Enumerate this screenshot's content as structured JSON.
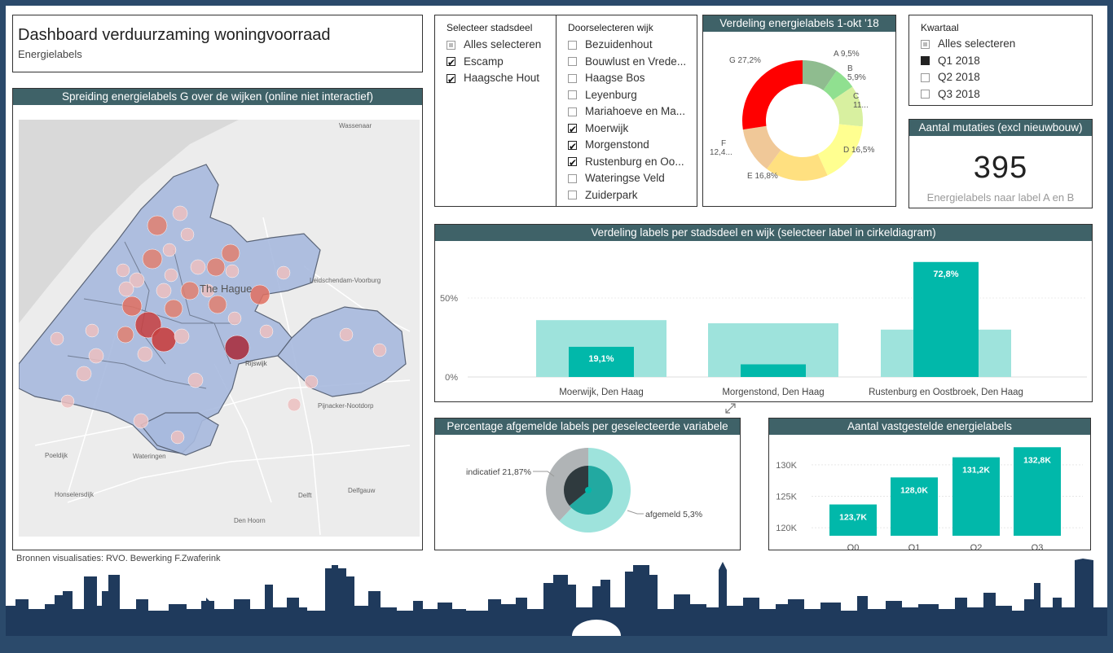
{
  "header": {
    "title": "Dashboard verduurzaming woningvoorraad",
    "subtitle": "Energielabels"
  },
  "map": {
    "title": "Spreiding energielabels G over de wijken (online niet interactief)",
    "places": {
      "wassenaar": "Wassenaar",
      "the_hague": "The Hague",
      "leidschendam": "Leidschendam-Voorburg",
      "rijswijk": "Rijswijk",
      "pijnacker": "Pijnacker-Nootdorp",
      "poeldijk": "Poeldijk",
      "wateringen": "Wateringen",
      "honselersdijk": "Honselersdijk",
      "delft": "Delft",
      "delfgauw": "Delfgauw",
      "den_hoorn": "Den Hoorn"
    }
  },
  "source_note": "Bronnen visualisaties: RVO. Bewerking F.Zwaferink",
  "slicer_stadsdeel": {
    "title": "Selecteer stadsdeel",
    "items": [
      {
        "label": "Alles selecteren",
        "state": "partial"
      },
      {
        "label": "Escamp",
        "state": "checked"
      },
      {
        "label": "Haagsche Hout",
        "state": "checked"
      }
    ]
  },
  "slicer_wijk": {
    "title": "Doorselecteren wijk",
    "items": [
      {
        "label": "Bezuidenhout",
        "state": "unchecked"
      },
      {
        "label": "Bouwlust en Vrede...",
        "state": "unchecked"
      },
      {
        "label": "Haagse Bos",
        "state": "unchecked"
      },
      {
        "label": "Leyenburg",
        "state": "unchecked"
      },
      {
        "label": "Mariahoeve en Ma...",
        "state": "unchecked"
      },
      {
        "label": "Moerwijk",
        "state": "checked"
      },
      {
        "label": "Morgenstond",
        "state": "checked"
      },
      {
        "label": "Rustenburg en Oo...",
        "state": "checked"
      },
      {
        "label": "Wateringse Veld",
        "state": "unchecked"
      },
      {
        "label": "Zuiderpark",
        "state": "unchecked"
      }
    ]
  },
  "slicer_kwartaal": {
    "title": "Kwartaal",
    "items": [
      {
        "label": "Alles selecteren",
        "state": "partial"
      },
      {
        "label": "Q1 2018",
        "state": "filled"
      },
      {
        "label": "Q2 2018",
        "state": "unchecked"
      },
      {
        "label": "Q3 2018",
        "state": "unchecked"
      }
    ]
  },
  "kpi": {
    "title": "Aantal mutaties (excl nieuwbouw)",
    "value": "395",
    "caption": "Energielabels naar label A en B"
  },
  "colors": {
    "accent_dark": "#3f6268",
    "teal": "#01b8aa",
    "teal_light": "#9ee3dc",
    "skyline": "#1f3a5c"
  },
  "chart_data": [
    {
      "type": "pie",
      "title": "Verdeling energielabels 1-okt '18",
      "categories": [
        "A",
        "B",
        "C",
        "D",
        "E",
        "F",
        "G"
      ],
      "values": [
        9.5,
        5.9,
        11.0,
        16.5,
        16.8,
        12.4,
        27.2
      ],
      "data_labels": [
        "A 9,5%",
        "B 5,9%",
        "C 11...",
        "D 16,5%",
        "E 16,8%",
        "F 12,4...",
        "G 27,2%"
      ],
      "colors": [
        "#8fbc8f",
        "#90e090",
        "#d8f0a0",
        "#ffff90",
        "#ffe080",
        "#f0c898",
        "#ff0000"
      ]
    },
    {
      "type": "bar",
      "title": "Verdeling labels per stadsdeel en wijk (selecteer label in cirkeldiagram)",
      "categories": [
        "Moerwijk, Den Haag",
        "Morgenstond, Den Haag",
        "Rustenburg en Oostbroek, Den Haag"
      ],
      "series": [
        {
          "values": [
            36,
            34,
            30
          ]
        },
        {
          "values": [
            19.1,
            8,
            72.8
          ]
        }
      ],
      "data_labels": [
        "19,1%",
        "",
        "72,8%"
      ],
      "yticks": [
        "0%",
        "50%"
      ],
      "ylim": [
        0,
        80
      ]
    },
    {
      "type": "pie",
      "title": "Percentage afgemelde labels per geselecteerde variabele",
      "categories": [
        "afgemeld",
        "indicatief"
      ],
      "outer_values": [
        62,
        38
      ],
      "inner_values": [
        64,
        36
      ],
      "data_labels": [
        "afgemeld 5,3%",
        "indicatief 21,87%"
      ]
    },
    {
      "type": "bar",
      "title": "Aantal vastgestelde energielabels",
      "categories": [
        "Q0",
        "Q1",
        "Q2",
        "Q3"
      ],
      "values": [
        123.7,
        128.0,
        131.2,
        132.8
      ],
      "data_labels": [
        "123,7K",
        "128,0K",
        "131,2K",
        "132,8K"
      ],
      "yticks": [
        "120K",
        "125K",
        "130K"
      ],
      "ylim": [
        119.5,
        134
      ]
    }
  ]
}
